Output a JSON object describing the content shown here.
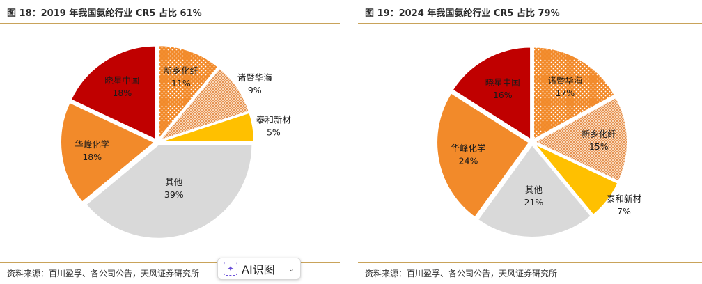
{
  "left": {
    "title": "图 18：2019 年我国氨纶行业 CR5 占比 61%",
    "source": "资料来源：百川盈孚、各公司公告，天风证券研究所"
  },
  "right": {
    "title": "图 19：2024 年我国氨纶行业 CR5 占比 79%",
    "source": "资料来源：百川盈孚、各公司公告，天风证券研究所"
  },
  "ai_button": {
    "label": "AI识图",
    "icon": "sparkle-icon",
    "chevron": "chevron-down-icon"
  },
  "colors": {
    "red": "#c00000",
    "orange": "#f28a2a",
    "hatch_base": "#fbe5d0",
    "hatch_line": "#e07a2a",
    "yellow": "#ffc000",
    "gray": "#d9d9d9"
  },
  "chart_data": [
    {
      "type": "pie",
      "title": "图 18：2019 年我国氨纶行业 CR5 占比 61%",
      "slices": [
        {
          "name": "新乡化纤",
          "value": 11,
          "label": "11%",
          "style": "dots"
        },
        {
          "name": "诸暨华海",
          "value": 9,
          "label": "9%",
          "style": "hatch"
        },
        {
          "name": "泰和新材",
          "value": 5,
          "label": "5%",
          "style": "yellow"
        },
        {
          "name": "其他",
          "value": 39,
          "label": "39%",
          "style": "gray"
        },
        {
          "name": "华峰化学",
          "value": 18,
          "label": "18%",
          "style": "orange"
        },
        {
          "name": "晓星中国",
          "value": 18,
          "label": "18%",
          "style": "red"
        }
      ]
    },
    {
      "type": "pie",
      "title": "图 19：2024 年我国氨纶行业 CR5 占比 79%",
      "slices": [
        {
          "name": "诸暨华海",
          "value": 17,
          "label": "17%",
          "style": "dots"
        },
        {
          "name": "新乡化纤",
          "value": 15,
          "label": "15%",
          "style": "hatch"
        },
        {
          "name": "泰和新材",
          "value": 7,
          "label": "7%",
          "style": "yellow"
        },
        {
          "name": "其他",
          "value": 21,
          "label": "21%",
          "style": "gray"
        },
        {
          "name": "华峰化学",
          "value": 24,
          "label": "24%",
          "style": "orange"
        },
        {
          "name": "晓星中国",
          "value": 16,
          "label": "16%",
          "style": "red"
        }
      ]
    }
  ]
}
